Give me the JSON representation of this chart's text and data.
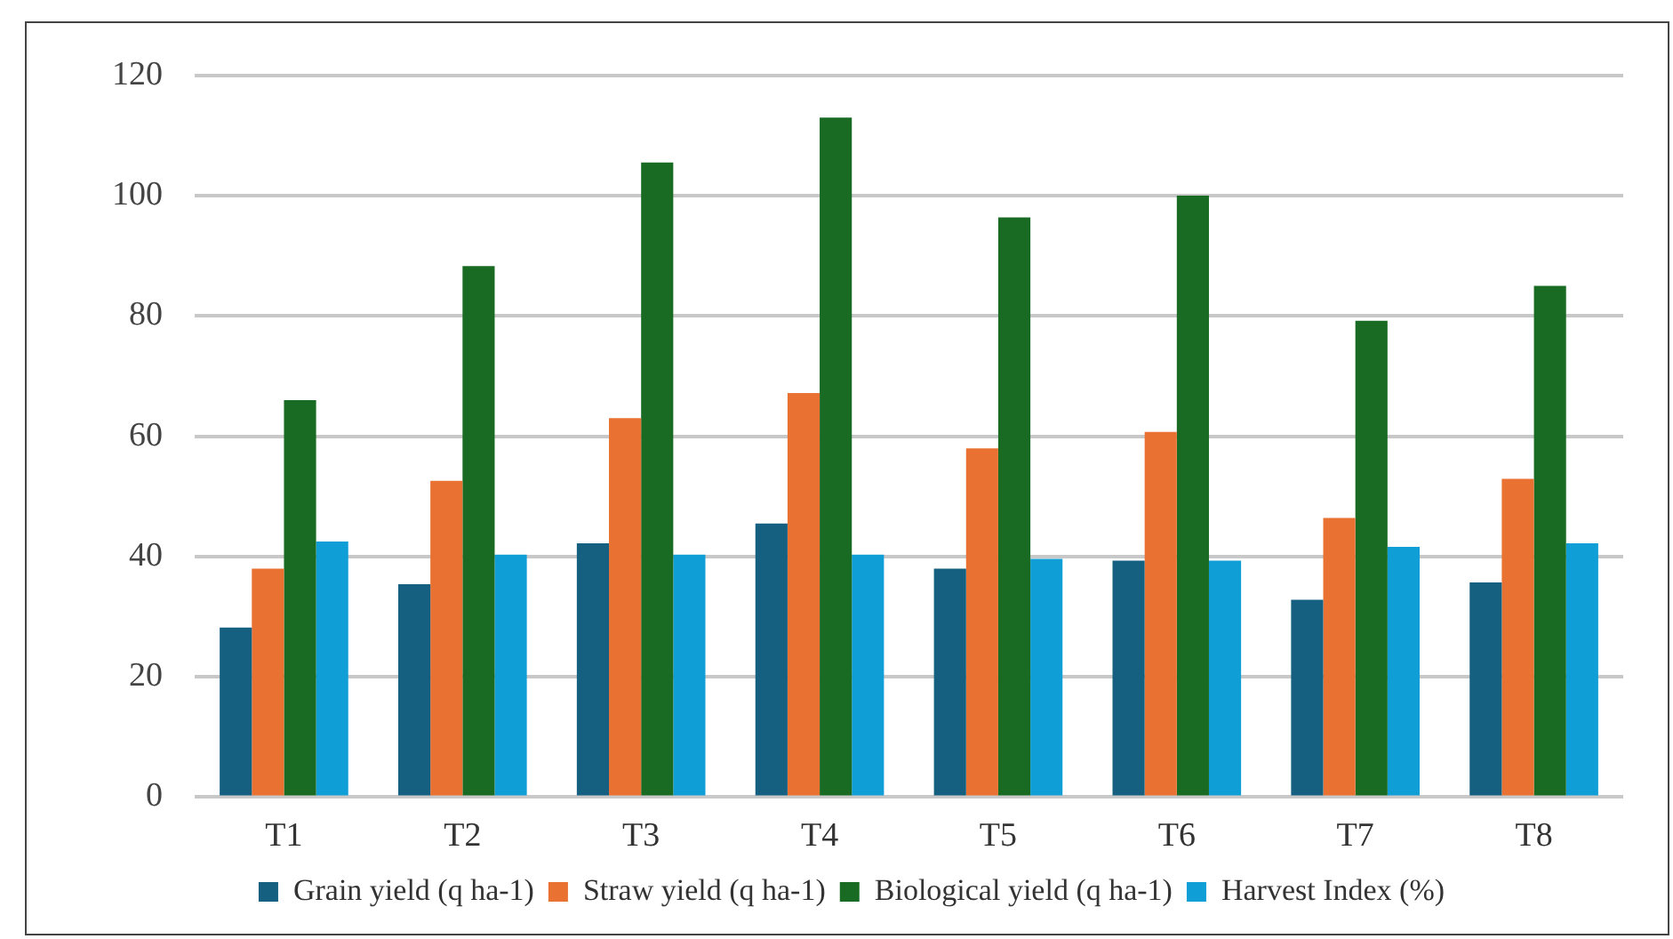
{
  "chart_data": {
    "type": "bar",
    "categories": [
      "T1",
      "T2",
      "T3",
      "T4",
      "T5",
      "T6",
      "T7",
      "T8"
    ],
    "series": [
      {
        "name": "Grain yield (q ha-1)",
        "color": "#155f80",
        "values": [
          28.2,
          35.4,
          42.2,
          45.5,
          38,
          39.3,
          32.8,
          35.7
        ]
      },
      {
        "name": "Straw yield (q ha-1)",
        "color": "#e97132",
        "values": [
          38,
          52.6,
          63,
          67.2,
          58,
          60.7,
          46.4,
          52.9
        ]
      },
      {
        "name": "Biological yield (q ha-1)",
        "color": "#196b24",
        "values": [
          66,
          88.3,
          105.5,
          113,
          96.4,
          100,
          79.2,
          85
        ]
      },
      {
        "name": "Harvest Index (%)",
        "color": "#0f9ed5",
        "values": [
          42.5,
          40.3,
          40.3,
          40.3,
          39.6,
          39.3,
          41.6,
          42.2
        ]
      }
    ],
    "ylim": [
      0,
      120
    ],
    "yticks": [
      0,
      20,
      40,
      60,
      80,
      100,
      120
    ],
    "grid": "y",
    "legend": "bottom"
  }
}
